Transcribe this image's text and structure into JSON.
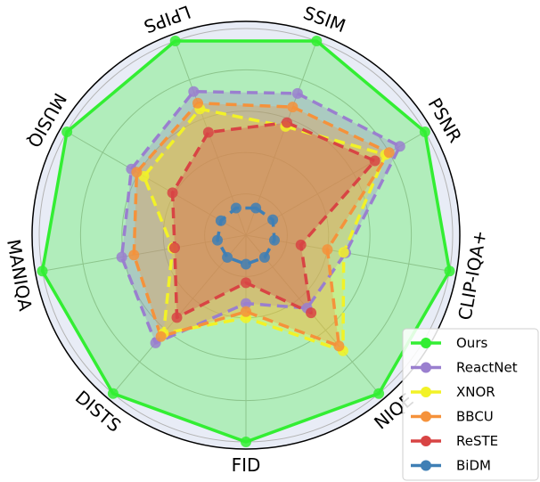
{
  "chart_data": {
    "type": "radar",
    "axes": [
      "SSIM",
      "PSNR",
      "CLIP-IQA+",
      "NIQE",
      "FID",
      "DISTS",
      "MANIQA",
      "MUSIQ",
      "LPIPS"
    ],
    "rlim": [
      0,
      1
    ],
    "grid": true,
    "legend_position": "bottom-right",
    "series": [
      {
        "name": "Ours",
        "color": "#33ee33",
        "values": [
          1.0,
          1.0,
          1.0,
          1.0,
          1.0,
          1.0,
          1.0,
          1.0,
          1.0
        ],
        "fill": true
      },
      {
        "name": "ReactNet",
        "color": "#9a7fcf",
        "values": [
          0.73,
          0.86,
          0.49,
          0.46,
          0.33,
          0.68,
          0.61,
          0.64,
          0.74
        ],
        "fill": true
      },
      {
        "name": "XNOR",
        "color": "#f2f227",
        "values": [
          0.56,
          0.78,
          0.48,
          0.73,
          0.4,
          0.62,
          0.36,
          0.57,
          0.65
        ],
        "fill": true
      },
      {
        "name": "BBCU",
        "color": "#f5923b",
        "values": [
          0.66,
          0.8,
          0.4,
          0.7,
          0.37,
          0.64,
          0.55,
          0.61,
          0.68
        ],
        "fill": true
      },
      {
        "name": "ReSTE",
        "color": "#d84444",
        "values": [
          0.58,
          0.72,
          0.27,
          0.49,
          0.23,
          0.52,
          0.35,
          0.41,
          0.53
        ],
        "fill": true
      },
      {
        "name": "BiDM",
        "color": "#3f7fb5",
        "values": [
          0.14,
          0.15,
          0.14,
          0.14,
          0.14,
          0.14,
          0.14,
          0.14,
          0.14
        ],
        "fill": false
      }
    ]
  }
}
